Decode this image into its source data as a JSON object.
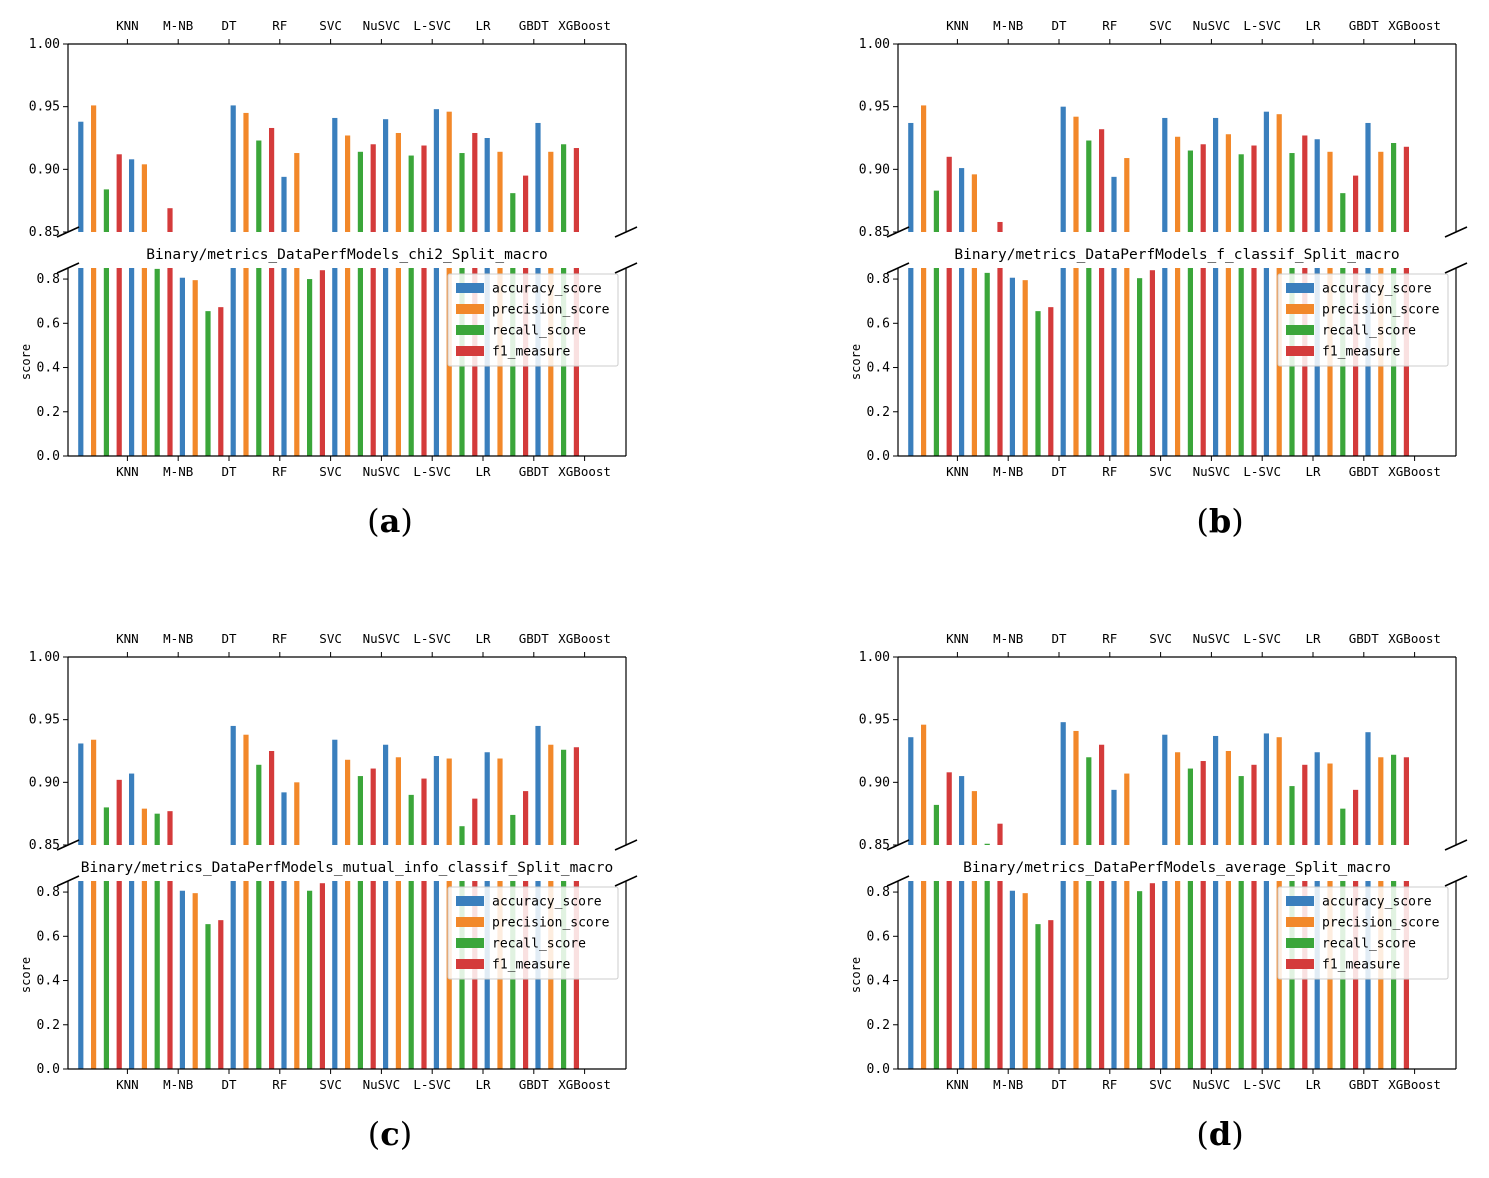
{
  "colors": {
    "accuracy_score": "#3a7fbd",
    "precision_score": "#f2882a",
    "recall_score": "#3ba63a",
    "f1_measure": "#d43b3b"
  },
  "chart_data": [
    {
      "type": "bar",
      "panel_label": "(a)",
      "title": "Binary/metrics_DataPerfModels_chi2_Split_macro",
      "ylabel": "score",
      "categories": [
        "KNN",
        "M-NB",
        "DT",
        "RF",
        "SVC",
        "NuSVC",
        "L-SVC",
        "LR",
        "GBDT",
        "XGBoost"
      ],
      "legend_position": "center-right",
      "upper_ylim": [
        0.85,
        1.0
      ],
      "lower_ylim": [
        0.0,
        0.85
      ],
      "upper_yticks": [
        "0.85",
        "0.90",
        "0.95",
        "1.00"
      ],
      "lower_yticks": [
        "0.0",
        "0.2",
        "0.4",
        "0.6",
        "0.8"
      ],
      "series": [
        {
          "name": "accuracy_score",
          "values": [
            0.938,
            0.908,
            0.806,
            0.951,
            0.894,
            0.941,
            0.94,
            0.948,
            0.925,
            0.937
          ]
        },
        {
          "name": "precision_score",
          "values": [
            0.951,
            0.904,
            0.795,
            0.945,
            0.913,
            0.927,
            0.929,
            0.946,
            0.914,
            0.914
          ]
        },
        {
          "name": "recall_score",
          "values": [
            0.884,
            0.846,
            0.655,
            0.923,
            0.8,
            0.914,
            0.911,
            0.913,
            0.881,
            0.92
          ]
        },
        {
          "name": "f1_measure",
          "values": [
            0.912,
            0.869,
            0.673,
            0.933,
            0.84,
            0.92,
            0.919,
            0.929,
            0.895,
            0.917
          ]
        }
      ]
    },
    {
      "type": "bar",
      "panel_label": "(b)",
      "title": "Binary/metrics_DataPerfModels_f_classif_Split_macro",
      "ylabel": "score",
      "categories": [
        "KNN",
        "M-NB",
        "DT",
        "RF",
        "SVC",
        "NuSVC",
        "L-SVC",
        "LR",
        "GBDT",
        "XGBoost"
      ],
      "legend_position": "center-right",
      "upper_ylim": [
        0.85,
        1.0
      ],
      "lower_ylim": [
        0.0,
        0.85
      ],
      "upper_yticks": [
        "0.85",
        "0.90",
        "0.95",
        "1.00"
      ],
      "lower_yticks": [
        "0.0",
        "0.2",
        "0.4",
        "0.6",
        "0.8"
      ],
      "series": [
        {
          "name": "accuracy_score",
          "values": [
            0.937,
            0.901,
            0.806,
            0.95,
            0.894,
            0.941,
            0.941,
            0.946,
            0.924,
            0.937
          ]
        },
        {
          "name": "precision_score",
          "values": [
            0.951,
            0.896,
            0.795,
            0.942,
            0.909,
            0.926,
            0.928,
            0.944,
            0.914,
            0.914
          ]
        },
        {
          "name": "recall_score",
          "values": [
            0.883,
            0.828,
            0.655,
            0.923,
            0.804,
            0.915,
            0.912,
            0.913,
            0.881,
            0.921
          ]
        },
        {
          "name": "f1_measure",
          "values": [
            0.91,
            0.858,
            0.673,
            0.932,
            0.84,
            0.92,
            0.919,
            0.927,
            0.895,
            0.918
          ]
        }
      ]
    },
    {
      "type": "bar",
      "panel_label": "(c)",
      "title": "Binary/metrics_DataPerfModels_mutual_info_classif_Split_macro",
      "ylabel": "score",
      "categories": [
        "KNN",
        "M-NB",
        "DT",
        "RF",
        "SVC",
        "NuSVC",
        "L-SVC",
        "LR",
        "GBDT",
        "XGBoost"
      ],
      "legend_position": "center-right",
      "upper_ylim": [
        0.85,
        1.0
      ],
      "lower_ylim": [
        0.0,
        0.85
      ],
      "upper_yticks": [
        "0.85",
        "0.90",
        "0.95",
        "1.00"
      ],
      "lower_yticks": [
        "0.0",
        "0.2",
        "0.4",
        "0.6",
        "0.8"
      ],
      "series": [
        {
          "name": "accuracy_score",
          "values": [
            0.931,
            0.907,
            0.806,
            0.945,
            0.892,
            0.934,
            0.93,
            0.921,
            0.924,
            0.945
          ]
        },
        {
          "name": "precision_score",
          "values": [
            0.934,
            0.879,
            0.795,
            0.938,
            0.9,
            0.918,
            0.92,
            0.919,
            0.919,
            0.93
          ]
        },
        {
          "name": "recall_score",
          "values": [
            0.88,
            0.875,
            0.655,
            0.914,
            0.806,
            0.905,
            0.89,
            0.865,
            0.874,
            0.926
          ]
        },
        {
          "name": "f1_measure",
          "values": [
            0.902,
            0.877,
            0.673,
            0.925,
            0.84,
            0.911,
            0.903,
            0.887,
            0.893,
            0.928
          ]
        }
      ]
    },
    {
      "type": "bar",
      "panel_label": "(d)",
      "title": "Binary/metrics_DataPerfModels_average_Split_macro",
      "ylabel": "score",
      "categories": [
        "KNN",
        "M-NB",
        "DT",
        "RF",
        "SVC",
        "NuSVC",
        "L-SVC",
        "LR",
        "GBDT",
        "XGBoost"
      ],
      "legend_position": "center-right",
      "upper_ylim": [
        0.85,
        1.0
      ],
      "lower_ylim": [
        0.0,
        0.85
      ],
      "upper_yticks": [
        "0.85",
        "0.90",
        "0.95",
        "1.00"
      ],
      "lower_yticks": [
        "0.0",
        "0.2",
        "0.4",
        "0.6",
        "0.8"
      ],
      "series": [
        {
          "name": "accuracy_score",
          "values": [
            0.936,
            0.905,
            0.806,
            0.948,
            0.894,
            0.938,
            0.937,
            0.939,
            0.924,
            0.94
          ]
        },
        {
          "name": "precision_score",
          "values": [
            0.946,
            0.893,
            0.795,
            0.941,
            0.907,
            0.924,
            0.925,
            0.936,
            0.915,
            0.92
          ]
        },
        {
          "name": "recall_score",
          "values": [
            0.882,
            0.851,
            0.655,
            0.92,
            0.804,
            0.911,
            0.905,
            0.897,
            0.879,
            0.922
          ]
        },
        {
          "name": "f1_measure",
          "values": [
            0.908,
            0.867,
            0.673,
            0.93,
            0.84,
            0.917,
            0.914,
            0.914,
            0.894,
            0.92
          ]
        }
      ]
    }
  ]
}
